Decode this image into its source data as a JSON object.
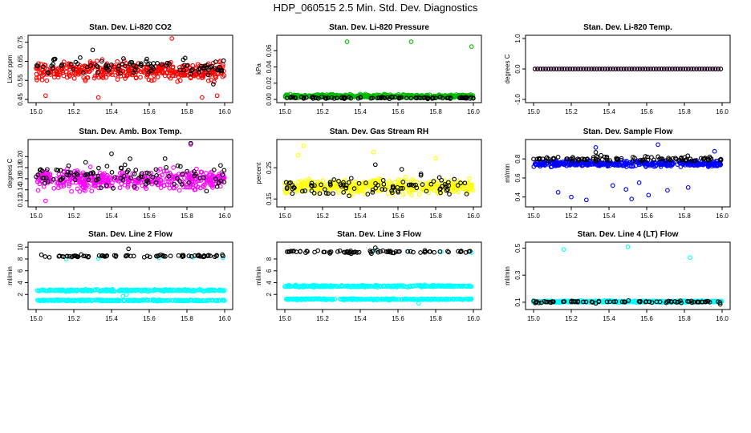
{
  "figure": {
    "title": "HDP_060515  2.5 Min. Std. Dev. Diagnostics"
  },
  "chart_data": [
    {
      "id": "co2",
      "type": "scatter",
      "title": "Stan. Dev. Li-820 CO2",
      "xlabel": "",
      "ylabel": "Licor ppm",
      "xlim": [
        15.0,
        16.0
      ],
      "ylim": [
        0.45,
        0.77
      ],
      "xticks": [
        "15.0",
        "15.2",
        "15.4",
        "15.6",
        "15.8",
        "16.0"
      ],
      "yticks": [
        "0.45",
        "0.55",
        "0.65",
        "0.75"
      ],
      "grid": false,
      "series": [
        {
          "color": "#ff0000",
          "marker": "open-circle",
          "n": 420,
          "bands": [
            {
              "center": 0.6,
              "spread": 0.045
            }
          ],
          "outliers": [
            [
              15.72,
              0.77
            ],
            [
              15.05,
              0.47
            ],
            [
              15.33,
              0.46
            ],
            [
              15.96,
              0.47
            ],
            [
              15.88,
              0.46
            ]
          ]
        },
        {
          "color": "#000000",
          "marker": "open-circle",
          "n": 95,
          "bands": [
            {
              "center": 0.62,
              "spread": 0.04
            }
          ],
          "outliers": [
            [
              15.3,
              0.71
            ],
            [
              15.94,
              0.53
            ]
          ]
        }
      ]
    },
    {
      "id": "pressure",
      "type": "scatter",
      "title": "Stan. Dev. Li-820 Pressure",
      "xlabel": "",
      "ylabel": "kPa",
      "xlim": [
        15.0,
        16.0
      ],
      "ylim": [
        0.0,
        0.075
      ],
      "xticks": [
        "15.0",
        "15.2",
        "15.4",
        "15.6",
        "15.8",
        "16.0"
      ],
      "yticks": [
        "0.00",
        "0.02",
        "0.04",
        "0.06"
      ],
      "grid": false,
      "series": [
        {
          "color": "#00bb00",
          "marker": "open-circle",
          "n": 420,
          "bands": [
            {
              "center": 0.004,
              "spread": 0.002
            }
          ],
          "outliers": [
            [
              15.33,
              0.071
            ],
            [
              15.67,
              0.071
            ],
            [
              15.99,
              0.065
            ]
          ]
        },
        {
          "color": "#000000",
          "marker": "open-circle",
          "n": 95,
          "bands": [
            {
              "center": 0.002,
              "spread": 0.0012
            }
          ],
          "outliers": []
        }
      ]
    },
    {
      "id": "temp",
      "type": "scatter",
      "title": "Stan. Dev. Li-820 Temp.",
      "xlabel": "",
      "ylabel": "degrees C",
      "xlim": [
        15.0,
        16.0
      ],
      "ylim": [
        -1.0,
        1.0
      ],
      "xticks": [
        "15.0",
        "15.2",
        "15.4",
        "15.6",
        "15.8",
        "16.0"
      ],
      "yticks": [
        "-1.0",
        "0.0",
        "1.0"
      ],
      "grid": false,
      "series": [
        {
          "color": "#ff00ff",
          "marker": "open-circle",
          "n": 70,
          "bands": [
            {
              "center": 0.0,
              "spread": 0.0
            }
          ],
          "outliers": [],
          "regular": true
        },
        {
          "color": "#000000",
          "marker": "open-circle",
          "n": 70,
          "bands": [
            {
              "center": 0.0,
              "spread": 0.0
            }
          ],
          "outliers": [],
          "regular": true
        }
      ]
    },
    {
      "id": "boxtemp",
      "type": "scatter",
      "title": "Stan. Dev. Amb. Box Temp.",
      "xlabel": "",
      "ylabel": "degrees C",
      "xlim": [
        15.0,
        16.0
      ],
      "ylim": [
        0.115,
        0.225
      ],
      "xticks": [
        "15.0",
        "15.2",
        "15.4",
        "15.6",
        "15.8",
        "16.0"
      ],
      "yticks": [
        "0.12",
        "0.14",
        "0.16",
        "0.18",
        "0.20"
      ],
      "grid": false,
      "series": [
        {
          "color": "#ff00ff",
          "marker": "open-circle",
          "n": 420,
          "bands": [
            {
              "center": 0.158,
              "spread": 0.016
            }
          ],
          "outliers": [
            [
              15.82,
              0.222
            ],
            [
              15.05,
              0.12
            ]
          ]
        },
        {
          "color": "#000000",
          "marker": "open-circle",
          "n": 100,
          "bands": [
            {
              "center": 0.165,
              "spread": 0.022
            }
          ],
          "outliers": [
            [
              15.82,
              0.224
            ],
            [
              15.4,
              0.205
            ]
          ]
        }
      ]
    },
    {
      "id": "rh",
      "type": "scatter",
      "title": "Stan. Dev. Gas Stream RH",
      "xlabel": "",
      "ylabel": "percent",
      "xlim": [
        15.0,
        16.0
      ],
      "ylim": [
        0.135,
        0.33
      ],
      "xticks": [
        "15.0",
        "15.2",
        "15.4",
        "15.6",
        "15.8",
        "16.0"
      ],
      "yticks": [
        "0.15",
        "0.25"
      ],
      "grid": false,
      "series": [
        {
          "color": "#ffff00",
          "marker": "open-circle",
          "n": 420,
          "bands": [
            {
              "center": 0.19,
              "spread": 0.022
            }
          ],
          "outliers": [
            [
              15.1,
              0.32
            ],
            [
              15.47,
              0.3
            ],
            [
              15.8,
              0.28
            ],
            [
              15.07,
              0.29
            ]
          ]
        },
        {
          "color": "#000000",
          "marker": "open-circle",
          "n": 95,
          "bands": [
            {
              "center": 0.19,
              "spread": 0.028
            }
          ],
          "outliers": [
            [
              15.48,
              0.26
            ],
            [
              15.62,
              0.245
            ]
          ]
        }
      ]
    },
    {
      "id": "flow",
      "type": "scatter",
      "title": "Stan. Dev. Sample Flow",
      "xlabel": "",
      "ylabel": "ml/min",
      "xlim": [
        15.0,
        16.0
      ],
      "ylim": [
        0.33,
        0.97
      ],
      "xticks": [
        "15.0",
        "15.2",
        "15.4",
        "15.6",
        "15.8",
        "16.0"
      ],
      "yticks": [
        "0.4",
        "0.6",
        "0.8"
      ],
      "grid": false,
      "series": [
        {
          "color": "#0000ff",
          "marker": "open-circle",
          "n": 420,
          "bands": [
            {
              "center": 0.75,
              "spread": 0.03
            }
          ],
          "outliers": [
            [
              15.33,
              0.92
            ],
            [
              15.66,
              0.95
            ],
            [
              15.13,
              0.45
            ],
            [
              15.2,
              0.4
            ],
            [
              15.42,
              0.52
            ],
            [
              15.49,
              0.48
            ],
            [
              15.52,
              0.38
            ],
            [
              15.56,
              0.55
            ],
            [
              15.71,
              0.47
            ],
            [
              15.82,
              0.5
            ],
            [
              15.96,
              0.88
            ],
            [
              15.28,
              0.37
            ],
            [
              15.61,
              0.42
            ]
          ]
        },
        {
          "color": "#000000",
          "marker": "open-circle",
          "n": 100,
          "bands": [
            {
              "center": 0.8,
              "spread": 0.025
            }
          ],
          "outliers": [
            [
              15.33,
              0.87
            ]
          ]
        }
      ]
    },
    {
      "id": "line2",
      "type": "scatter",
      "title": "Stan. Dev. Line 2 Flow",
      "xlabel": "",
      "ylabel": "ml/min",
      "xlim": [
        15.0,
        16.0
      ],
      "ylim": [
        0.0,
        10.3
      ],
      "xticks": [
        "15.0",
        "15.2",
        "15.4",
        "15.6",
        "15.8",
        "16.0"
      ],
      "yticks": [
        "2",
        "4",
        "6",
        "8",
        "10"
      ],
      "grid": false,
      "series": [
        {
          "color": "#00ffff",
          "marker": "open-circle",
          "n": 600,
          "bands": [
            {
              "center": 2.7,
              "spread": 0.15
            },
            {
              "center": 1.0,
              "spread": 0.12
            }
          ],
          "outliers": [
            [
              15.33,
              8.1
            ],
            [
              15.65,
              8.2
            ],
            [
              15.83,
              8.3
            ],
            [
              15.16,
              8.0
            ],
            [
              15.99,
              8.2
            ],
            [
              15.46,
              1.7
            ],
            [
              15.48,
              2.0
            ]
          ]
        },
        {
          "color": "#000000",
          "marker": "open-circle",
          "n": 75,
          "bands": [
            {
              "center": 8.5,
              "spread": 0.2
            }
          ],
          "outliers": [
            [
              15.49,
              9.7
            ]
          ]
        }
      ]
    },
    {
      "id": "line3",
      "type": "scatter",
      "title": "Stan. Dev. Line 3 Flow",
      "xlabel": "",
      "ylabel": "ml/min",
      "xlim": [
        15.0,
        16.0
      ],
      "ylim": [
        0.0,
        10.3
      ],
      "xticks": [
        "15.0",
        "15.2",
        "15.4",
        "15.6",
        "15.8",
        "16.0"
      ],
      "yticks": [
        "2",
        "4",
        "6",
        "8"
      ],
      "grid": false,
      "series": [
        {
          "color": "#00ffff",
          "marker": "open-circle",
          "n": 600,
          "bands": [
            {
              "center": 3.4,
              "spread": 0.15
            },
            {
              "center": 1.2,
              "spread": 0.12
            }
          ],
          "outliers": [
            [
              15.48,
              9.4
            ],
            [
              15.65,
              9.3
            ],
            [
              15.83,
              9.2
            ],
            [
              15.99,
              9.1
            ],
            [
              15.71,
              0.5
            ]
          ]
        },
        {
          "color": "#000000",
          "marker": "open-circle",
          "n": 75,
          "bands": [
            {
              "center": 9.2,
              "spread": 0.25
            }
          ],
          "outliers": [
            [
              15.48,
              9.9
            ]
          ]
        }
      ]
    },
    {
      "id": "line4",
      "type": "scatter",
      "title": "Stan. Dev. Line 4 (LT) Flow",
      "xlabel": "",
      "ylabel": "ml/min",
      "xlim": [
        15.0,
        16.0
      ],
      "ylim": [
        0.07,
        0.52
      ],
      "xticks": [
        "15.0",
        "15.2",
        "15.4",
        "15.6",
        "15.8",
        "16.0"
      ],
      "yticks": [
        "0.1",
        "0.3",
        "0.5"
      ],
      "grid": false,
      "series": [
        {
          "color": "#00ffff",
          "marker": "open-circle",
          "n": 600,
          "bands": [
            {
              "center": 0.105,
              "spread": 0.006
            }
          ],
          "outliers": [
            [
              15.16,
              0.49
            ],
            [
              15.5,
              0.51
            ],
            [
              15.83,
              0.43
            ]
          ]
        },
        {
          "color": "#000000",
          "marker": "open-circle",
          "n": 75,
          "bands": [
            {
              "center": 0.103,
              "spread": 0.007
            }
          ],
          "outliers": [
            [
              15.99,
              0.085
            ],
            [
              15.33,
              0.092
            ]
          ]
        }
      ]
    }
  ]
}
